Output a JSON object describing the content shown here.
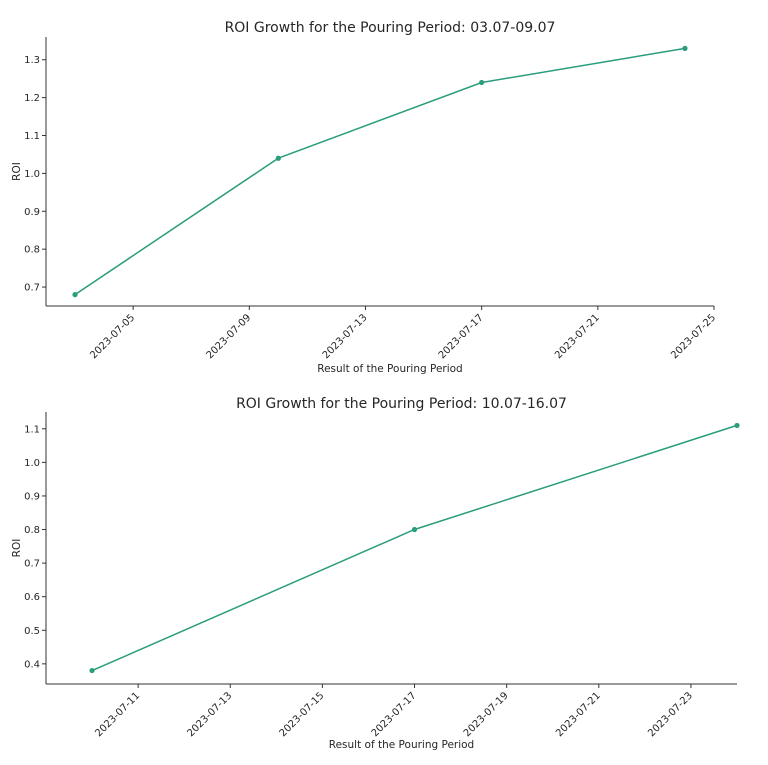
{
  "chart_data": [
    {
      "type": "line",
      "title": "ROI Growth for the Pouring Period: 03.07-09.07",
      "xlabel": "Result of the Pouring Period",
      "ylabel": "ROI",
      "x_type": "date",
      "xlim": [
        "2023-07-02",
        "2023-07-25"
      ],
      "ylim": [
        0.65,
        1.36
      ],
      "x_ticks": [
        "2023-07-05",
        "2023-07-09",
        "2023-07-13",
        "2023-07-17",
        "2023-07-21",
        "2023-07-25"
      ],
      "y_ticks": [
        0.7,
        0.8,
        0.9,
        1.0,
        1.1,
        1.2,
        1.3
      ],
      "grid": false,
      "color": "#2a9d7c",
      "series": [
        {
          "x": [
            "2023-07-03",
            "2023-07-10",
            "2023-07-17",
            "2023-07-24"
          ],
          "y": [
            0.68,
            1.04,
            1.24,
            1.33
          ]
        }
      ]
    },
    {
      "type": "line",
      "title": "ROI Growth for the Pouring Period: 10.07-16.07",
      "xlabel": "Result of the Pouring Period",
      "ylabel": "ROI",
      "x_type": "date",
      "xlim": [
        "2023-07-09",
        "2023-07-24"
      ],
      "ylim": [
        0.34,
        1.15
      ],
      "x_ticks": [
        "2023-07-11",
        "2023-07-13",
        "2023-07-15",
        "2023-07-17",
        "2023-07-19",
        "2023-07-21",
        "2023-07-23"
      ],
      "y_ticks": [
        0.4,
        0.5,
        0.6,
        0.7,
        0.8,
        0.9,
        1.0,
        1.1
      ],
      "grid": false,
      "color": "#2a9d7c",
      "series": [
        {
          "x": [
            "2023-07-10",
            "2023-07-17",
            "2023-07-24"
          ],
          "y": [
            0.38,
            0.8,
            1.11
          ]
        }
      ]
    }
  ]
}
